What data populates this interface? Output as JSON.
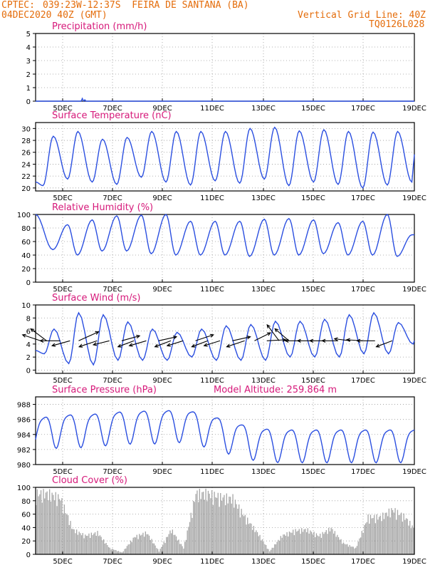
{
  "header": {
    "source": "CPTEC:",
    "location": "039:23W-12:37S  FEIRA DE SANTANA (BA)",
    "init_time": "04DEC2020 40Z (GMT)",
    "grid_note": "Vertical Grid Line: 40Z",
    "model": "TQ0126L028"
  },
  "colors": {
    "header": "#e46c0a",
    "titles": "#d6197a",
    "line": "#2b4fe0",
    "bars": "#a6a6a6",
    "grid": "#9a9a9a"
  },
  "chart_data": [
    {
      "type": "line",
      "title": "Precipitation (mm/h)",
      "ylim": [
        0,
        5
      ],
      "yticks": [
        0,
        1,
        2,
        3,
        4,
        5
      ],
      "xlabels": [
        "5DEC",
        "7DEC",
        "9DEC",
        "11DEC",
        "13DEC",
        "15DEC",
        "17DEC",
        "19DEC"
      ],
      "x_unit": "days since 04DEC2020 40Z",
      "xlim": [
        0,
        15.4
      ],
      "peaks": [
        [
          1.9,
          0.2
        ],
        [
          2.0,
          0.1
        ]
      ],
      "grid": true
    },
    {
      "type": "line",
      "title": "Surface Temperature (nC)",
      "ylim": [
        19.5,
        31
      ],
      "yticks": [
        20,
        22,
        24,
        26,
        28,
        30
      ],
      "xlabels": [
        "5DEC",
        "7DEC",
        "9DEC",
        "11DEC",
        "13DEC",
        "15DEC",
        "17DEC",
        "19DEC"
      ],
      "xlim": [
        0,
        15.4
      ],
      "start": 21.0,
      "min_values": [
        20.4,
        21.5,
        21.0,
        20.6,
        21.8,
        21.0,
        20.5,
        21.2,
        20.8,
        21.5,
        20.4,
        21.0,
        20.6,
        20.0,
        20.5,
        21.0
      ],
      "max_values": [
        28.7,
        29.5,
        28.2,
        28.5,
        29.5,
        29.5,
        29.5,
        29.5,
        30.0,
        30.2,
        29.6,
        29.8,
        29.5,
        29.4,
        29.5,
        30.3
      ],
      "grid": true
    },
    {
      "type": "line",
      "title": "Relative Humidity (%)",
      "ylim": [
        0,
        100
      ],
      "yticks": [
        0,
        20,
        40,
        60,
        80,
        100
      ],
      "xlabels": [
        "5DEC",
        "7DEC",
        "9DEC",
        "11DEC",
        "13DEC",
        "15DEC",
        "17DEC",
        "19DEC"
      ],
      "xlim": [
        0,
        15.4
      ],
      "start": 100,
      "min_values": [
        48,
        40,
        46,
        46,
        42,
        40,
        40,
        40,
        38,
        40,
        40,
        42,
        40,
        40,
        38,
        35
      ],
      "max_values": [
        100,
        85,
        92,
        98,
        99,
        100,
        90,
        90,
        90,
        93,
        94,
        92,
        88,
        90,
        100,
        70
      ],
      "grid": true
    },
    {
      "type": "line",
      "title": "Surface Wind (m/s)",
      "ylim": [
        -0.5,
        10
      ],
      "yticks": [
        0,
        2,
        4,
        6,
        8,
        10
      ],
      "xlabels": [
        "5DEC",
        "7DEC",
        "9DEC",
        "11DEC",
        "13DEC",
        "15DEC",
        "17DEC",
        "19DEC"
      ],
      "xlim": [
        0,
        15.4
      ],
      "speed_min": [
        2.5,
        1.0,
        0.8,
        1.5,
        1.5,
        1.5,
        2.0,
        1.5,
        1.5,
        1.5,
        2.0,
        2.0,
        2.0,
        2.5,
        2.5,
        4.0
      ],
      "speed_max": [
        6.3,
        8.8,
        8.5,
        7.4,
        6.3,
        5.8,
        6.3,
        6.8,
        7.0,
        7.5,
        7.5,
        7.8,
        8.5,
        8.8,
        7.3,
        6.5
      ],
      "vectors": [
        [
          0.2,
          -0.9,
          0.3
        ],
        [
          0.45,
          -0.8,
          0.6
        ],
        [
          1.0,
          -1.0,
          0.0
        ],
        [
          1.4,
          -0.9,
          -0.25
        ],
        [
          1.75,
          1.0,
          0.45
        ],
        [
          2.5,
          -0.9,
          -0.3
        ],
        [
          3.0,
          -0.8,
          -0.2
        ],
        [
          3.5,
          0.9,
          0.25
        ],
        [
          4.0,
          -0.8,
          -0.3
        ],
        [
          4.5,
          -0.85,
          -0.25
        ],
        [
          5.0,
          0.9,
          0.2
        ],
        [
          5.5,
          -0.8,
          -0.3
        ],
        [
          6.0,
          -0.8,
          -0.25
        ],
        [
          6.5,
          0.9,
          0.3
        ],
        [
          7.0,
          -0.8,
          -0.3
        ],
        [
          7.5,
          -0.8,
          -0.25
        ],
        [
          8.0,
          0.9,
          0.2
        ],
        [
          8.5,
          -0.9,
          -0.3
        ],
        [
          8.9,
          0.8,
          0.4
        ],
        [
          9.4,
          0.95,
          0.05
        ],
        [
          9.9,
          -0.6,
          0.8
        ],
        [
          10.3,
          -0.7,
          0.6
        ],
        [
          10.8,
          -0.8,
          0.0
        ],
        [
          11.3,
          -0.8,
          0.0
        ],
        [
          11.8,
          -0.8,
          0.0
        ],
        [
          12.3,
          -0.8,
          0.0
        ],
        [
          12.8,
          -0.8,
          0.1
        ],
        [
          13.3,
          -0.8,
          0.05
        ],
        [
          13.8,
          -0.9,
          0.0
        ],
        [
          14.5,
          -0.8,
          -0.3
        ]
      ],
      "grid": true
    },
    {
      "type": "line",
      "title": "Surface Pressure (hPa)",
      "annotation": "Model Altitude: 259.864 m",
      "ylim": [
        980,
        989
      ],
      "yticks": [
        980,
        982,
        984,
        986,
        988
      ],
      "xlabels": [
        "5DEC",
        "7DEC",
        "9DEC",
        "11DEC",
        "13DEC",
        "15DEC",
        "17DEC",
        "19DEC"
      ],
      "xlim": [
        0,
        15.4
      ],
      "pattern": {
        "hi1": 2.0,
        "lo1": -2.3,
        "hi2": 0.8,
        "lo2": -0.8
      },
      "base": [
        984.5,
        985,
        985,
        985.3,
        985.5,
        985.5,
        985.7,
        985,
        984,
        983.2,
        983,
        983,
        983,
        983,
        983,
        983
      ],
      "grid": true
    },
    {
      "type": "bar",
      "title": "Cloud Cover (%)",
      "ylim": [
        0,
        100
      ],
      "yticks": [
        0,
        20,
        40,
        60,
        80,
        100
      ],
      "xlabels": [
        "5DEC",
        "7DEC",
        "9DEC",
        "11DEC",
        "13DEC",
        "15DEC",
        "17DEC",
        "19DEC"
      ],
      "xlim": [
        0,
        15.4
      ],
      "envelope": [
        [
          0,
          98
        ],
        [
          0.5,
          98
        ],
        [
          1.0,
          90
        ],
        [
          1.5,
          40
        ],
        [
          2.0,
          30
        ],
        [
          2.5,
          35
        ],
        [
          3.0,
          10
        ],
        [
          3.5,
          3
        ],
        [
          4.0,
          28
        ],
        [
          4.5,
          35
        ],
        [
          5.0,
          5
        ],
        [
          5.5,
          40
        ],
        [
          6.0,
          10
        ],
        [
          6.5,
          98
        ],
        [
          7.0,
          98
        ],
        [
          7.5,
          92
        ],
        [
          8.0,
          90
        ],
        [
          8.5,
          60
        ],
        [
          9.0,
          35
        ],
        [
          9.5,
          5
        ],
        [
          10.0,
          30
        ],
        [
          10.5,
          38
        ],
        [
          11.0,
          40
        ],
        [
          11.5,
          30
        ],
        [
          12.0,
          42
        ],
        [
          12.5,
          18
        ],
        [
          13.0,
          10
        ],
        [
          13.5,
          60
        ],
        [
          14.0,
          60
        ],
        [
          14.5,
          72
        ],
        [
          15.0,
          60
        ],
        [
          15.4,
          40
        ]
      ],
      "grid": true
    }
  ]
}
